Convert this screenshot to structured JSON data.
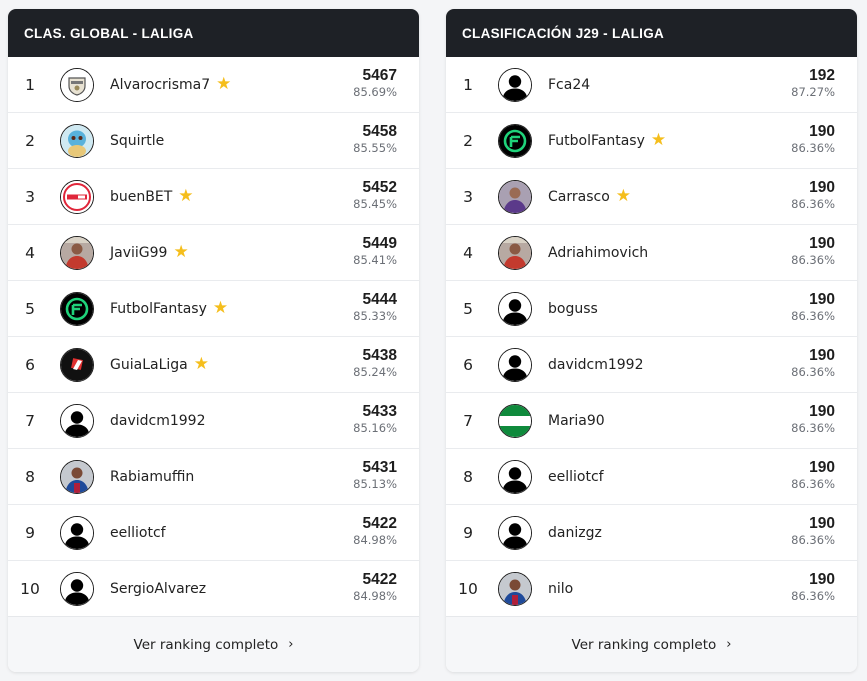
{
  "global": {
    "title": "CLAS. GLOBAL - LALIGA",
    "footer_label": "Ver ranking completo",
    "rows": [
      {
        "rank": "1",
        "name": "Alvarocrisma7",
        "star": true,
        "points": "5467",
        "pct": "85.69%",
        "avatar": "crest-icon"
      },
      {
        "rank": "2",
        "name": "Squirtle",
        "star": false,
        "points": "5458",
        "pct": "85.55%",
        "avatar": "squirtle-icon"
      },
      {
        "rank": "3",
        "name": "buenBET",
        "star": true,
        "points": "5452",
        "pct": "85.45%",
        "avatar": "buenbet-logo-icon"
      },
      {
        "rank": "4",
        "name": "JaviiG99",
        "star": true,
        "points": "5449",
        "pct": "85.41%",
        "avatar": "photo-icon"
      },
      {
        "rank": "5",
        "name": "FutbolFantasy",
        "star": true,
        "points": "5444",
        "pct": "85.33%",
        "avatar": "futbolfantasy-logo-icon"
      },
      {
        "rank": "6",
        "name": "GuiaLaLiga",
        "star": true,
        "points": "5438",
        "pct": "85.24%",
        "avatar": "guia-fantasy-logo-icon"
      },
      {
        "rank": "7",
        "name": "davidcm1992",
        "star": false,
        "points": "5433",
        "pct": "85.16%",
        "avatar": "default-user-icon"
      },
      {
        "rank": "8",
        "name": "Rabiamuffin",
        "star": false,
        "points": "5431",
        "pct": "85.13%",
        "avatar": "player-photo-icon"
      },
      {
        "rank": "9",
        "name": "eelliotcf",
        "star": false,
        "points": "5422",
        "pct": "84.98%",
        "avatar": "default-user-icon"
      },
      {
        "rank": "10",
        "name": "SergioAlvarez",
        "star": false,
        "points": "5422",
        "pct": "84.98%",
        "avatar": "default-user-icon"
      }
    ]
  },
  "jornada": {
    "title": "CLASIFICACIÓN J29 - LALIGA",
    "footer_label": "Ver ranking completo",
    "rows": [
      {
        "rank": "1",
        "name": "Fca24",
        "star": false,
        "points": "192",
        "pct": "87.27%",
        "avatar": "default-user-icon"
      },
      {
        "rank": "2",
        "name": "FutbolFantasy",
        "star": true,
        "points": "190",
        "pct": "86.36%",
        "avatar": "futbolfantasy-logo-icon"
      },
      {
        "rank": "3",
        "name": "Carrasco",
        "star": true,
        "points": "190",
        "pct": "86.36%",
        "avatar": "photo-purple-icon"
      },
      {
        "rank": "4",
        "name": "Adriahimovich",
        "star": false,
        "points": "190",
        "pct": "86.36%",
        "avatar": "photo-icon"
      },
      {
        "rank": "5",
        "name": "boguss",
        "star": false,
        "points": "190",
        "pct": "86.36%",
        "avatar": "default-user-icon"
      },
      {
        "rank": "6",
        "name": "davidcm1992",
        "star": false,
        "points": "190",
        "pct": "86.36%",
        "avatar": "default-user-icon"
      },
      {
        "rank": "7",
        "name": "Maria90",
        "star": false,
        "points": "190",
        "pct": "86.36%",
        "avatar": "flag-icon"
      },
      {
        "rank": "8",
        "name": "eelliotcf",
        "star": false,
        "points": "190",
        "pct": "86.36%",
        "avatar": "default-user-icon"
      },
      {
        "rank": "9",
        "name": "danizgz",
        "star": false,
        "points": "190",
        "pct": "86.36%",
        "avatar": "default-user-icon"
      },
      {
        "rank": "10",
        "name": "nilo",
        "star": false,
        "points": "190",
        "pct": "86.36%",
        "avatar": "player-photo-icon"
      }
    ]
  },
  "icons": {
    "star": "★",
    "chevron": "›"
  },
  "colors": {
    "header_bg": "#1e2126",
    "star": "#f5be1c",
    "futbolfantasy_green": "#1fd37a"
  }
}
